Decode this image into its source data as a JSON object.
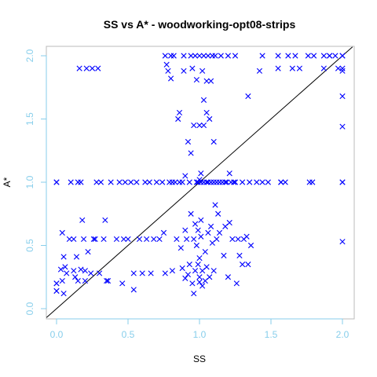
{
  "chart_data": {
    "type": "scatter",
    "title": "SS vs A* - woodworking-opt08-strips",
    "xlabel": "SS",
    "ylabel": "A*",
    "xlim": [
      0,
      2
    ],
    "ylim": [
      0,
      2
    ],
    "xticks": [
      "0.0",
      "0.5",
      "1.0",
      "1.5",
      "2.0"
    ],
    "yticks": [
      "0.0",
      "0.5",
      "1.0",
      "1.5",
      "2.0"
    ],
    "marker": "x",
    "marker_color": "#0000ff",
    "axis_color": "#87CEEB",
    "reference_line": "y = x",
    "grid": false,
    "points": [
      [
        0.0,
        1.0
      ],
      [
        0.0,
        1.0
      ],
      [
        0.0,
        0.2
      ],
      [
        0.0,
        0.2
      ],
      [
        0.0,
        0.14
      ],
      [
        0.0,
        0.14
      ],
      [
        0.03,
        0.31
      ],
      [
        0.04,
        0.22
      ],
      [
        0.04,
        0.6
      ],
      [
        0.05,
        0.12
      ],
      [
        0.05,
        0.41
      ],
      [
        0.06,
        0.33
      ],
      [
        0.07,
        0.28
      ],
      [
        0.09,
        0.55
      ],
      [
        0.1,
        1.0
      ],
      [
        0.12,
        0.3
      ],
      [
        0.12,
        0.55
      ],
      [
        0.13,
        0.25
      ],
      [
        0.14,
        0.41
      ],
      [
        0.15,
        1.0
      ],
      [
        0.15,
        0.22
      ],
      [
        0.16,
        1.9
      ],
      [
        0.17,
        1.0
      ],
      [
        0.17,
        0.31
      ],
      [
        0.18,
        0.7
      ],
      [
        0.19,
        0.55
      ],
      [
        0.2,
        0.22
      ],
      [
        0.2,
        0.3
      ],
      [
        0.21,
        1.9
      ],
      [
        0.22,
        0.45
      ],
      [
        0.24,
        0.28
      ],
      [
        0.25,
        1.9
      ],
      [
        0.26,
        0.55
      ],
      [
        0.27,
        0.55
      ],
      [
        0.28,
        1.0
      ],
      [
        0.29,
        1.9
      ],
      [
        0.3,
        0.28
      ],
      [
        0.31,
        1.0
      ],
      [
        0.33,
        0.55
      ],
      [
        0.34,
        0.7
      ],
      [
        0.35,
        0.22
      ],
      [
        0.36,
        0.22
      ],
      [
        0.38,
        1.0
      ],
      [
        0.42,
        0.55
      ],
      [
        0.44,
        1.0
      ],
      [
        0.46,
        0.2
      ],
      [
        0.47,
        0.55
      ],
      [
        0.48,
        1.0
      ],
      [
        0.5,
        0.55
      ],
      [
        0.52,
        1.0
      ],
      [
        0.54,
        0.28
      ],
      [
        0.54,
        0.15
      ],
      [
        0.56,
        1.0
      ],
      [
        0.58,
        0.55
      ],
      [
        0.6,
        0.28
      ],
      [
        0.62,
        1.0
      ],
      [
        0.63,
        0.55
      ],
      [
        0.65,
        1.0
      ],
      [
        0.66,
        0.28
      ],
      [
        0.68,
        0.55
      ],
      [
        0.7,
        1.0
      ],
      [
        0.72,
        0.55
      ],
      [
        0.74,
        1.0
      ],
      [
        0.75,
        0.6
      ],
      [
        0.76,
        0.28
      ],
      [
        0.76,
        2.0
      ],
      [
        0.77,
        1.93
      ],
      [
        0.78,
        1.88
      ],
      [
        0.79,
        1.0
      ],
      [
        0.8,
        2.0
      ],
      [
        0.8,
        1.82
      ],
      [
        0.81,
        1.0
      ],
      [
        0.81,
        0.3
      ],
      [
        0.82,
        2.0
      ],
      [
        0.83,
        1.0
      ],
      [
        0.84,
        0.55
      ],
      [
        0.85,
        1.5
      ],
      [
        0.86,
        1.0
      ],
      [
        0.86,
        1.55
      ],
      [
        0.87,
        0.48
      ],
      [
        0.88,
        0.32
      ],
      [
        0.88,
        1.0
      ],
      [
        0.89,
        2.0
      ],
      [
        0.89,
        1.88
      ],
      [
        0.9,
        0.62
      ],
      [
        0.9,
        0.24
      ],
      [
        0.9,
        1.05
      ],
      [
        0.91,
        0.55
      ],
      [
        0.92,
        1.32
      ],
      [
        0.92,
        0.27
      ],
      [
        0.93,
        0.35
      ],
      [
        0.93,
        1.0
      ],
      [
        0.94,
        2.0
      ],
      [
        0.94,
        0.75
      ],
      [
        0.94,
        1.23
      ],
      [
        0.95,
        1.9
      ],
      [
        0.95,
        0.2
      ],
      [
        0.96,
        0.12
      ],
      [
        0.96,
        1.45
      ],
      [
        0.96,
        0.55
      ],
      [
        0.97,
        2.0
      ],
      [
        0.97,
        0.67
      ],
      [
        0.97,
        0.3
      ],
      [
        0.98,
        1.0
      ],
      [
        0.98,
        1.81
      ],
      [
        0.98,
        0.5
      ],
      [
        0.99,
        0.35
      ],
      [
        0.99,
        0.62
      ],
      [
        0.99,
        1.0
      ],
      [
        1.0,
        2.0
      ],
      [
        1.0,
        1.45
      ],
      [
        1.0,
        1.02
      ],
      [
        1.0,
        0.25
      ],
      [
        1.0,
        0.4
      ],
      [
        1.0,
        0.21
      ],
      [
        1.01,
        1.07
      ],
      [
        1.01,
        1.0
      ],
      [
        1.01,
        0.57
      ],
      [
        1.01,
        0.7
      ],
      [
        1.02,
        1.88
      ],
      [
        1.02,
        0.3
      ],
      [
        1.02,
        0.18
      ],
      [
        1.03,
        2.0
      ],
      [
        1.03,
        1.65
      ],
      [
        1.03,
        1.45
      ],
      [
        1.03,
        1.0
      ],
      [
        1.04,
        0.45
      ],
      [
        1.04,
        0.22
      ],
      [
        1.05,
        1.8
      ],
      [
        1.05,
        1.55
      ],
      [
        1.05,
        1.0
      ],
      [
        1.05,
        0.33
      ],
      [
        1.06,
        2.0
      ],
      [
        1.06,
        0.6
      ],
      [
        1.06,
        1.0
      ],
      [
        1.07,
        1.5
      ],
      [
        1.07,
        0.25
      ],
      [
        1.08,
        1.8
      ],
      [
        1.08,
        0.65
      ],
      [
        1.08,
        1.0
      ],
      [
        1.09,
        2.0
      ],
      [
        1.09,
        0.52
      ],
      [
        1.1,
        1.0
      ],
      [
        1.1,
        1.32
      ],
      [
        1.1,
        0.3
      ],
      [
        1.11,
        0.82
      ],
      [
        1.11,
        2.0
      ],
      [
        1.12,
        0.55
      ],
      [
        1.12,
        1.0
      ],
      [
        1.13,
        0.75
      ],
      [
        1.14,
        0.6
      ],
      [
        1.14,
        1.0
      ],
      [
        1.15,
        2.0
      ],
      [
        1.16,
        1.0
      ],
      [
        1.17,
        0.42
      ],
      [
        1.18,
        0.65
      ],
      [
        1.18,
        1.0
      ],
      [
        1.19,
        1.0
      ],
      [
        1.2,
        2.0
      ],
      [
        1.2,
        0.25
      ],
      [
        1.21,
        0.68
      ],
      [
        1.21,
        1.07
      ],
      [
        1.22,
        1.0
      ],
      [
        1.23,
        0.55
      ],
      [
        1.24,
        1.0
      ],
      [
        1.25,
        2.0
      ],
      [
        1.25,
        1.0
      ],
      [
        1.26,
        0.2
      ],
      [
        1.27,
        0.55
      ],
      [
        1.28,
        0.42
      ],
      [
        1.3,
        1.0
      ],
      [
        1.3,
        0.35
      ],
      [
        1.31,
        0.55
      ],
      [
        1.33,
        0.57
      ],
      [
        1.34,
        1.68
      ],
      [
        1.34,
        0.35
      ],
      [
        1.35,
        1.0
      ],
      [
        1.36,
        0.5
      ],
      [
        1.4,
        1.0
      ],
      [
        1.42,
        1.88
      ],
      [
        1.44,
        2.0
      ],
      [
        1.44,
        1.0
      ],
      [
        1.48,
        1.0
      ],
      [
        1.55,
        2.0
      ],
      [
        1.55,
        1.9
      ],
      [
        1.57,
        1.0
      ],
      [
        1.57,
        1.0
      ],
      [
        1.6,
        1.0
      ],
      [
        1.62,
        2.0
      ],
      [
        1.65,
        1.9
      ],
      [
        1.67,
        2.0
      ],
      [
        1.7,
        1.9
      ],
      [
        1.76,
        2.0
      ],
      [
        1.77,
        1.0
      ],
      [
        1.79,
        1.0
      ],
      [
        1.8,
        2.0
      ],
      [
        1.87,
        2.0
      ],
      [
        1.87,
        1.9
      ],
      [
        1.91,
        2.0
      ],
      [
        1.91,
        2.0
      ],
      [
        1.95,
        2.0
      ],
      [
        1.97,
        1.9
      ],
      [
        2.0,
        2.0
      ],
      [
        2.0,
        2.0
      ],
      [
        2.0,
        1.9
      ],
      [
        2.0,
        1.88
      ],
      [
        2.0,
        1.68
      ],
      [
        2.0,
        1.44
      ],
      [
        2.0,
        1.0
      ],
      [
        2.0,
        1.0
      ],
      [
        2.0,
        0.53
      ]
    ]
  }
}
